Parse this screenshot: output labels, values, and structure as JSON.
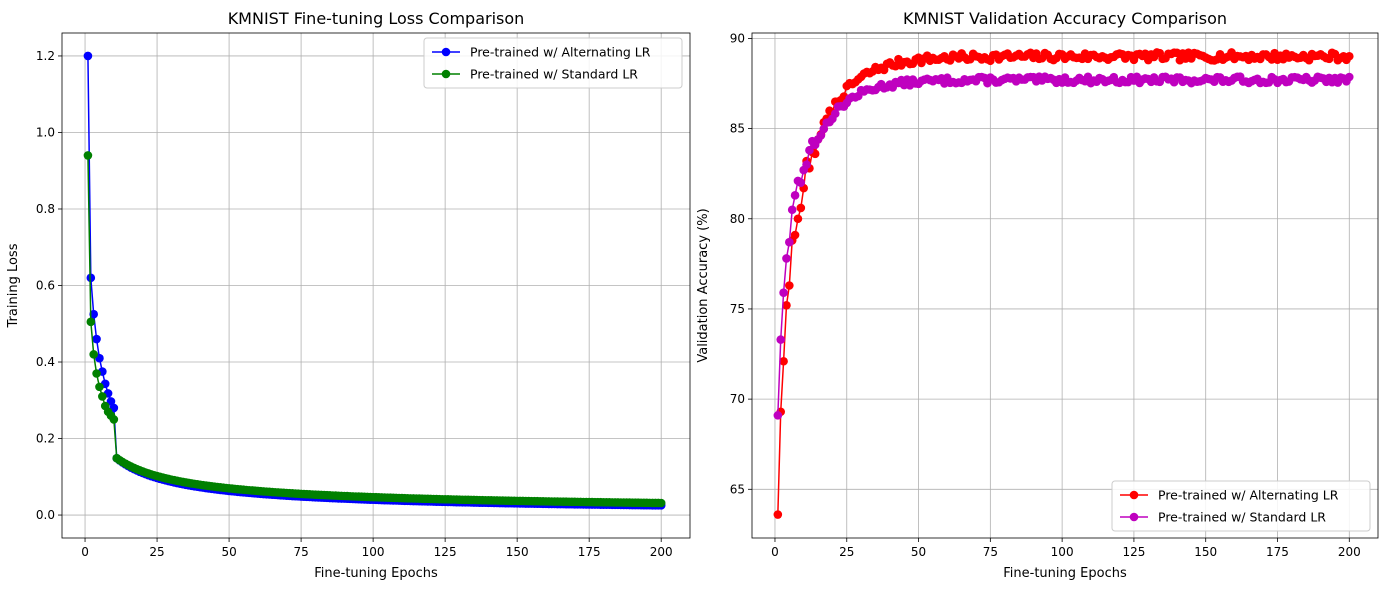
{
  "chart_data": [
    {
      "type": "line",
      "title": "KMNIST Fine-tuning Loss Comparison",
      "xlabel": "Fine-tuning Epochs",
      "ylabel": "Training Loss",
      "xlim": [
        -8,
        210
      ],
      "ylim": [
        -0.06,
        1.26
      ],
      "xticks": [
        0,
        25,
        50,
        75,
        100,
        125,
        150,
        175,
        200
      ],
      "yticks": [
        0.0,
        0.2,
        0.4,
        0.6,
        0.8,
        1.0,
        1.2
      ],
      "ytick_decimals": 1,
      "grid": true,
      "legend_position": "top-right",
      "x_range": [
        1,
        200
      ],
      "series": [
        {
          "name": "Pre-trained w/ Alternating LR",
          "color": "#0000ff",
          "marker": "circle",
          "curve": "loss",
          "params": {
            "head": [
              1.2,
              0.62,
              0.525,
              0.46,
              0.41,
              0.375,
              0.343,
              0.318,
              0.297,
              0.28
            ],
            "A": 0.2626,
            "B": 0.004,
            "K": 9,
            "p": 0.8
          }
        },
        {
          "name": "Pre-trained w/ Standard LR",
          "color": "#008000",
          "marker": "circle",
          "curve": "loss",
          "params": {
            "head": [
              0.94,
              0.505,
              0.42,
              0.37,
              0.335,
              0.31,
              0.285,
              0.27,
              0.26,
              0.25
            ],
            "A": 0.2443,
            "B": 0.006,
            "K": 9,
            "p": 0.72
          }
        }
      ]
    },
    {
      "type": "line",
      "title": "KMNIST Validation Accuracy Comparison",
      "xlabel": "Fine-tuning Epochs",
      "ylabel": "Validation Accuracy (%)",
      "xlim": [
        -8,
        210
      ],
      "ylim": [
        62.3,
        90.3
      ],
      "xticks": [
        0,
        25,
        50,
        75,
        100,
        125,
        150,
        175,
        200
      ],
      "yticks": [
        65,
        70,
        75,
        80,
        85,
        90
      ],
      "ytick_decimals": 0,
      "grid": true,
      "legend_position": "bottom-right",
      "x_range": [
        1,
        200
      ],
      "series": [
        {
          "name": "Pre-trained w/ Alternating LR",
          "color": "#ff0000",
          "marker": "circle",
          "curve": "acc",
          "params": {
            "head": [
              63.6,
              69.3,
              72.1,
              75.2,
              76.3,
              78.8,
              79.1,
              80.0,
              80.6,
              81.7,
              83.2,
              82.8,
              83.7,
              83.6,
              84.4
            ],
            "plateau": 89.0,
            "a0": 84.4,
            "x0": 15,
            "tau": 11,
            "amp": 0.22,
            "seed": 7
          }
        },
        {
          "name": "Pre-trained w/ Standard LR",
          "color": "#bf00bf",
          "marker": "circle",
          "curve": "acc",
          "params": {
            "head": [
              69.1,
              73.3,
              75.9,
              77.8,
              78.7,
              80.5,
              81.3,
              82.1,
              82.0,
              82.7,
              83.0,
              83.8,
              84.3,
              84.1,
              84.4
            ],
            "plateau": 87.7,
            "a0": 84.4,
            "x0": 15,
            "tau": 10,
            "amp": 0.18,
            "seed": 13
          }
        }
      ]
    }
  ]
}
